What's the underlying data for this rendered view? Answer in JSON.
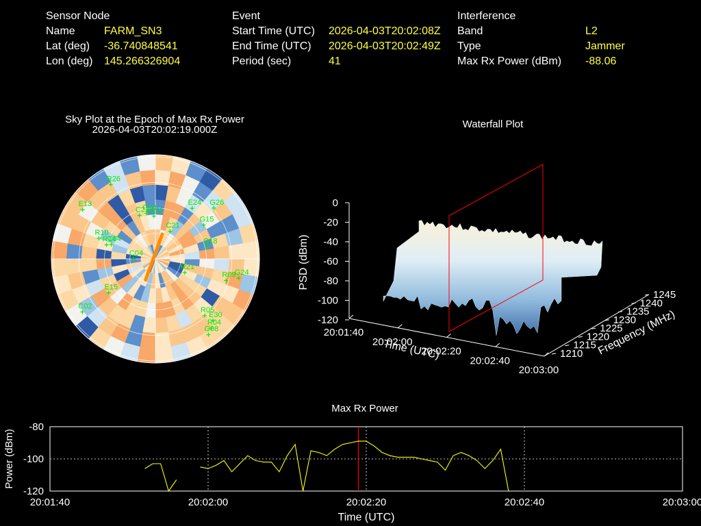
{
  "info": {
    "sensor": {
      "heading": "Sensor Node",
      "rows": [
        {
          "key": "Name",
          "value": "FARM_SN3"
        },
        {
          "key": "Lat (deg)",
          "value": "-36.740848541"
        },
        {
          "key": "Lon (deg)",
          "value": "145.266326904"
        }
      ]
    },
    "event": {
      "heading": "Event",
      "rows": [
        {
          "key": "Start Time (UTC)",
          "value": "2026-04-03T20:02:08Z"
        },
        {
          "key": "End Time (UTC)",
          "value": "2026-04-03T20:02:49Z"
        },
        {
          "key": "Period (sec)",
          "value": "41"
        }
      ]
    },
    "interference": {
      "heading": "Interference",
      "rows": [
        {
          "key": "Band",
          "value": "L2"
        },
        {
          "key": "Type",
          "value": "Jammer"
        },
        {
          "key": "Max Rx Power (dBm)",
          "value": "-88.06"
        }
      ]
    }
  },
  "colors": {
    "background": "#000000",
    "value_text": "#ffff44",
    "satellite": "#00ee00",
    "max_power_line": "#ffff00",
    "epoch_marker": "#ff0000",
    "jammer_direction": "#ff8c00"
  },
  "chart_data": [
    {
      "type": "polar",
      "title": "Sky Plot at the Epoch of Max Rx Power",
      "subtitle": "2026-04-03T20:02:19.000Z",
      "satellites": [
        {
          "label": "R26",
          "az": -31,
          "el": 15
        },
        {
          "label": "G26",
          "az": 49,
          "el": 23
        },
        {
          "label": "E24",
          "az": 36,
          "el": 36
        },
        {
          "label": "G15",
          "az": 55,
          "el": 39
        },
        {
          "label": "C22",
          "az": -20,
          "el": 50
        },
        {
          "label": "E13",
          "az": -56,
          "el": 14
        },
        {
          "label": "C10",
          "az": -11,
          "el": 50
        },
        {
          "label": "R10",
          "az": -70,
          "el": 38
        },
        {
          "label": "C04",
          "az": -72,
          "el": 50
        },
        {
          "label": "R14",
          "az": -74,
          "el": 46
        },
        {
          "label": "C01",
          "az": -2,
          "el": 53
        },
        {
          "label": "G18",
          "az": 77,
          "el": 44
        },
        {
          "label": "C04",
          "az": -90,
          "el": 71
        },
        {
          "label": "C21",
          "az": 28,
          "el": 63
        },
        {
          "label": "R21",
          "az": 115,
          "el": 62
        },
        {
          "label": "E15",
          "az": -126,
          "el": 40
        },
        {
          "label": "G24",
          "az": 103,
          "el": 16
        },
        {
          "label": "R09",
          "az": 107,
          "el": 26
        },
        {
          "label": "G08",
          "az": 145,
          "el": 10
        },
        {
          "label": "C02",
          "az": -126,
          "el": 12
        },
        {
          "label": "R05",
          "az": 139,
          "el": 25
        },
        {
          "label": "R04",
          "az": 141,
          "el": 13
        },
        {
          "label": "E30",
          "az": 137,
          "el": 17
        }
      ],
      "jammer": {
        "az": -155,
        "el": 70
      }
    },
    {
      "type": "surface",
      "title": "Waterfall Plot",
      "xlabel": "Time (UTC)",
      "ylabel": "Frequency (MHz)",
      "zlabel": "PSD (dBm)",
      "x_ticks": [
        "20:01:40",
        "20:02:00",
        "20:02:20",
        "20:02:40",
        "20:03:00"
      ],
      "y_ticks": [
        1210,
        1215,
        1220,
        1225,
        1230,
        1235,
        1240,
        1245
      ],
      "z_ticks": [
        0,
        -20,
        -40,
        -60,
        -80,
        -100,
        -120
      ],
      "zlim": [
        -120,
        0
      ],
      "marker_time": "2026-04-03T20:02:19.000Z"
    },
    {
      "type": "line",
      "title": "Max Rx Power",
      "xlabel": "Time (UTC)",
      "ylabel": "Power (dBm)",
      "x_ticks": [
        "20:01:40",
        "20:02:00",
        "20:02:20",
        "20:02:40",
        "20:03:00"
      ],
      "xlim": [
        "20:01:40",
        "20:03:00"
      ],
      "ylim": [
        -120,
        -80
      ],
      "y_ticks": [
        -80,
        -100,
        -120
      ],
      "grid": true,
      "series": [
        {
          "segments": [
            {
              "x": [
                "20:01:52",
                "20:01:53",
                "20:01:54",
                "20:01:55",
                "20:01:56"
              ],
              "y": [
                -106,
                -103,
                -103,
                -120,
                -113
              ]
            },
            {
              "x": [
                "20:01:59",
                "20:02:00",
                "20:02:01",
                "20:02:02",
                "20:02:03",
                "20:02:04",
                "20:02:05",
                "20:02:06",
                "20:02:07",
                "20:02:08",
                "20:02:09",
                "20:02:10",
                "20:02:11",
                "20:02:12",
                "20:02:13",
                "20:02:14",
                "20:02:15",
                "20:02:16",
                "20:02:17",
                "20:02:18",
                "20:02:19",
                "20:02:20",
                "20:02:21",
                "20:02:22",
                "20:02:23",
                "20:02:24",
                "20:02:25",
                "20:02:26",
                "20:02:27",
                "20:02:28",
                "20:02:29",
                "20:02:30",
                "20:02:31",
                "20:02:32",
                "20:02:33",
                "20:02:34",
                "20:02:35",
                "20:02:36",
                "20:02:37",
                "20:02:38"
              ],
              "y": [
                -105,
                -106,
                -104,
                -101,
                -108,
                -103,
                -98,
                -101,
                -102,
                -102,
                -108,
                -98,
                -91,
                -120,
                -95,
                -96,
                -98,
                -94,
                -91,
                -90,
                -89,
                -89,
                -92,
                -96,
                -98,
                -99,
                -99,
                -99,
                -100,
                -101,
                -102,
                -107,
                -98,
                -96,
                -98,
                -101,
                -106,
                -101,
                -94,
                -120
              ]
            }
          ]
        }
      ],
      "marker_time": "20:02:19"
    }
  ]
}
